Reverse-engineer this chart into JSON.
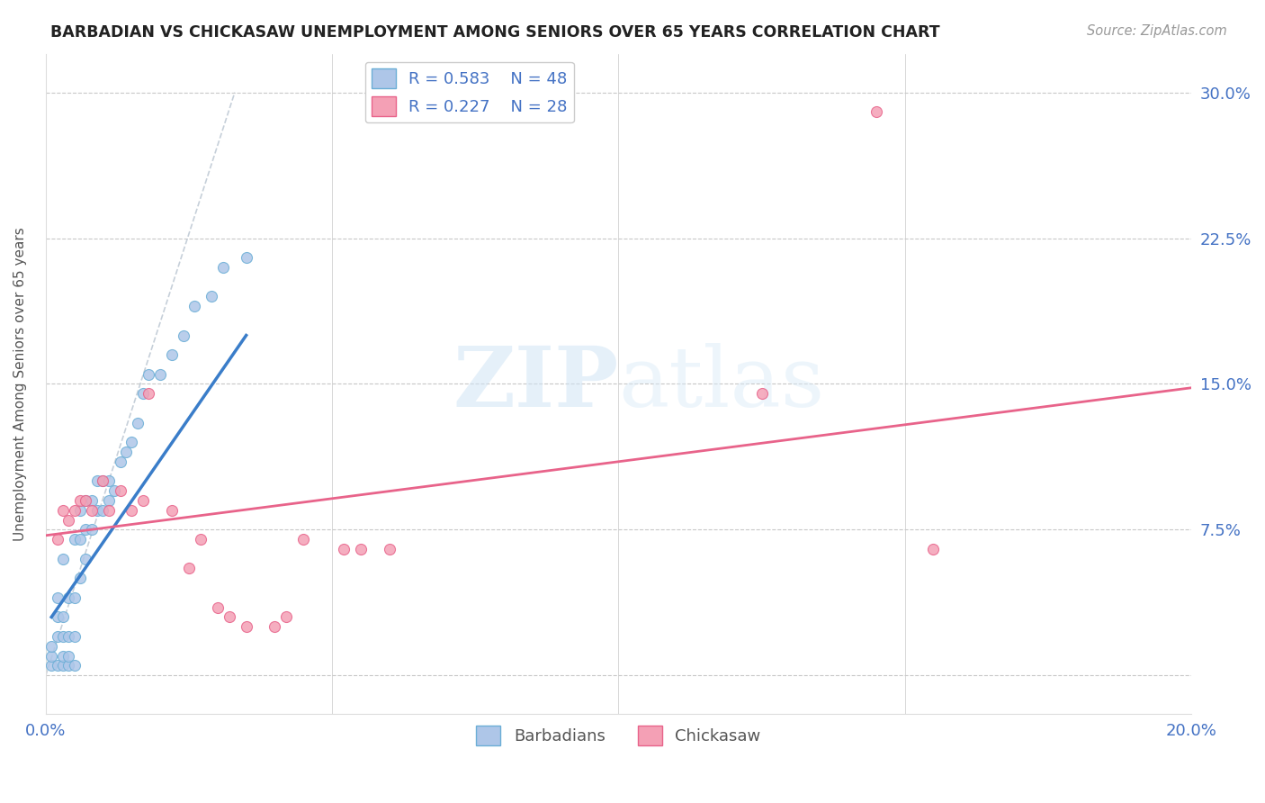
{
  "title": "BARBADIAN VS CHICKASAW UNEMPLOYMENT AMONG SENIORS OVER 65 YEARS CORRELATION CHART",
  "source": "Source: ZipAtlas.com",
  "ylabel": "Unemployment Among Seniors over 65 years",
  "xlim": [
    0.0,
    0.2
  ],
  "ylim": [
    -0.02,
    0.32
  ],
  "yticks": [
    0.0,
    0.075,
    0.15,
    0.225,
    0.3
  ],
  "ytick_labels": [
    "",
    "7.5%",
    "15.0%",
    "22.5%",
    "30.0%"
  ],
  "xticks": [
    0.0,
    0.05,
    0.1,
    0.15,
    0.2
  ],
  "xtick_labels": [
    "0.0%",
    "",
    "",
    "",
    "20.0%"
  ],
  "grid_color": "#c8c8c8",
  "barbadian_color": "#aec6e8",
  "chickasaw_color": "#f4a0b5",
  "barbadian_edge": "#6baed6",
  "chickasaw_edge": "#e8638a",
  "legend_R_barbadian": "R = 0.583",
  "legend_N_barbadian": "N = 48",
  "legend_R_chickasaw": "R = 0.227",
  "legend_N_chickasaw": "N = 28",
  "trendline_barbadian_color": "#3a7dc9",
  "trendline_chickasaw_color": "#e8638a",
  "trendline_ref_color": "#b8c4d0",
  "barbadian_x": [
    0.001,
    0.001,
    0.001,
    0.002,
    0.002,
    0.002,
    0.002,
    0.003,
    0.003,
    0.003,
    0.003,
    0.003,
    0.004,
    0.004,
    0.004,
    0.004,
    0.005,
    0.005,
    0.005,
    0.005,
    0.006,
    0.006,
    0.006,
    0.007,
    0.007,
    0.007,
    0.008,
    0.008,
    0.009,
    0.009,
    0.01,
    0.01,
    0.011,
    0.011,
    0.012,
    0.013,
    0.014,
    0.015,
    0.016,
    0.017,
    0.018,
    0.02,
    0.022,
    0.024,
    0.026,
    0.029,
    0.031,
    0.035
  ],
  "barbadian_y": [
    0.005,
    0.01,
    0.015,
    0.005,
    0.02,
    0.03,
    0.04,
    0.005,
    0.01,
    0.02,
    0.03,
    0.06,
    0.005,
    0.01,
    0.02,
    0.04,
    0.005,
    0.02,
    0.04,
    0.07,
    0.05,
    0.07,
    0.085,
    0.06,
    0.075,
    0.09,
    0.075,
    0.09,
    0.085,
    0.1,
    0.085,
    0.1,
    0.09,
    0.1,
    0.095,
    0.11,
    0.115,
    0.12,
    0.13,
    0.145,
    0.155,
    0.155,
    0.165,
    0.175,
    0.19,
    0.195,
    0.21,
    0.215
  ],
  "chickasaw_x": [
    0.002,
    0.003,
    0.004,
    0.005,
    0.006,
    0.007,
    0.008,
    0.01,
    0.011,
    0.013,
    0.015,
    0.017,
    0.018,
    0.022,
    0.025,
    0.027,
    0.03,
    0.032,
    0.035,
    0.04,
    0.042,
    0.045,
    0.052,
    0.055,
    0.06,
    0.125,
    0.145,
    0.155
  ],
  "chickasaw_y": [
    0.07,
    0.085,
    0.08,
    0.085,
    0.09,
    0.09,
    0.085,
    0.1,
    0.085,
    0.095,
    0.085,
    0.09,
    0.145,
    0.085,
    0.055,
    0.07,
    0.035,
    0.03,
    0.025,
    0.025,
    0.03,
    0.07,
    0.065,
    0.065,
    0.065,
    0.145,
    0.29,
    0.065
  ],
  "barbadian_trend_x": [
    0.001,
    0.035
  ],
  "barbadian_trend_y": [
    0.03,
    0.175
  ],
  "chickasaw_trend_x": [
    0.0,
    0.2
  ],
  "chickasaw_trend_y": [
    0.072,
    0.148
  ],
  "ref_line_x": [
    0.0,
    0.033
  ],
  "ref_line_y": [
    0.0,
    0.3
  ],
  "watermark_top": "ZIP",
  "watermark_bot": "atlas",
  "marker_size": 75
}
